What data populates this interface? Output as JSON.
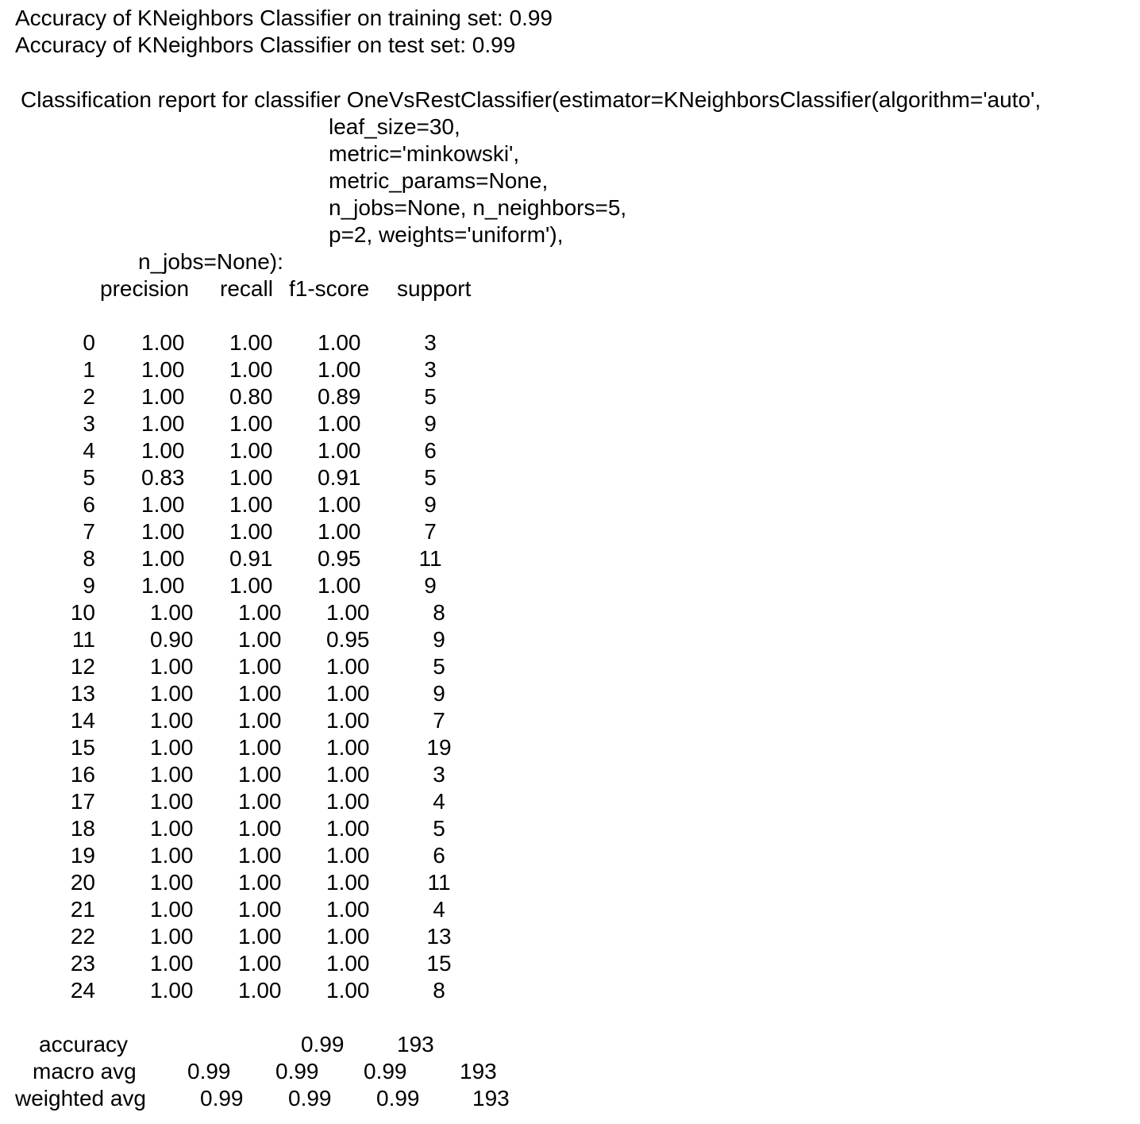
{
  "accuracy_train": "Accuracy of KNeighbors Classifier on training set: 0.99",
  "accuracy_test": "Accuracy of KNeighbors Classifier on test set: 0.99",
  "report": {
    "title_line": "Classification report for classifier OneVsRestClassifier(estimator=KNeighborsClassifier(algorithm='auto',",
    "param_lines": [
      "leaf_size=30,",
      "metric='minkowski',",
      "metric_params=None,",
      "n_jobs=None, n_neighbors=5,",
      "p=2, weights='uniform'),"
    ],
    "outer_line": "n_jobs=None):"
  },
  "table": {
    "headers": [
      "precision",
      "recall",
      "f1-score",
      "support"
    ],
    "rows": [
      [
        "0",
        "1.00",
        "1.00",
        "1.00",
        "3"
      ],
      [
        "1",
        "1.00",
        "1.00",
        "1.00",
        "3"
      ],
      [
        "2",
        "1.00",
        "0.80",
        "0.89",
        "5"
      ],
      [
        "3",
        "1.00",
        "1.00",
        "1.00",
        "9"
      ],
      [
        "4",
        "1.00",
        "1.00",
        "1.00",
        "6"
      ],
      [
        "5",
        "0.83",
        "1.00",
        "0.91",
        "5"
      ],
      [
        "6",
        "1.00",
        "1.00",
        "1.00",
        "9"
      ],
      [
        "7",
        "1.00",
        "1.00",
        "1.00",
        "7"
      ],
      [
        "8",
        "1.00",
        "0.91",
        "0.95",
        "11"
      ],
      [
        "9",
        "1.00",
        "1.00",
        "1.00",
        "9"
      ],
      [
        "10",
        "1.00",
        "1.00",
        "1.00",
        "8"
      ],
      [
        "11",
        "0.90",
        "1.00",
        "0.95",
        "9"
      ],
      [
        "12",
        "1.00",
        "1.00",
        "1.00",
        "5"
      ],
      [
        "13",
        "1.00",
        "1.00",
        "1.00",
        "9"
      ],
      [
        "14",
        "1.00",
        "1.00",
        "1.00",
        "7"
      ],
      [
        "15",
        "1.00",
        "1.00",
        "1.00",
        "19"
      ],
      [
        "16",
        "1.00",
        "1.00",
        "1.00",
        "3"
      ],
      [
        "17",
        "1.00",
        "1.00",
        "1.00",
        "4"
      ],
      [
        "18",
        "1.00",
        "1.00",
        "1.00",
        "5"
      ],
      [
        "19",
        "1.00",
        "1.00",
        "1.00",
        "6"
      ],
      [
        "20",
        "1.00",
        "1.00",
        "1.00",
        "11"
      ],
      [
        "21",
        "1.00",
        "1.00",
        "1.00",
        "4"
      ],
      [
        "22",
        "1.00",
        "1.00",
        "1.00",
        "13"
      ],
      [
        "23",
        "1.00",
        "1.00",
        "1.00",
        "15"
      ],
      [
        "24",
        "1.00",
        "1.00",
        "1.00",
        "8"
      ]
    ]
  },
  "summary": {
    "accuracy": {
      "label": "accuracy",
      "f1": "0.99",
      "support": "193"
    },
    "macro": {
      "label": "macro avg",
      "precision": "0.99",
      "recall": "0.99",
      "f1": "0.99",
      "support": "193"
    },
    "weighted": {
      "label": "weighted avg",
      "precision": "0.99",
      "recall": "0.99",
      "f1": "0.99",
      "support": "193"
    }
  }
}
